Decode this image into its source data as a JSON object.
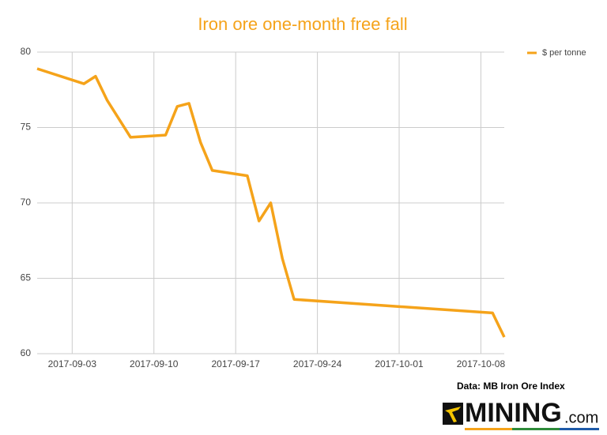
{
  "chart_data": {
    "type": "line",
    "title": "Iron ore one-month free fall",
    "x": [
      "2017-08-31",
      "2017-09-04",
      "2017-09-05",
      "2017-09-06",
      "2017-09-08",
      "2017-09-11",
      "2017-09-12",
      "2017-09-13",
      "2017-09-14",
      "2017-09-15",
      "2017-09-18",
      "2017-09-19",
      "2017-09-20",
      "2017-09-21",
      "2017-09-22",
      "2017-10-09",
      "2017-10-10"
    ],
    "series": [
      {
        "name": "$ per tonne",
        "color": "#f5a31a",
        "values": [
          78.9,
          77.9,
          78.4,
          76.8,
          74.35,
          74.5,
          76.4,
          76.6,
          74.0,
          72.15,
          71.8,
          68.8,
          70.0,
          66.3,
          63.6,
          62.7,
          61.1
        ]
      }
    ],
    "xlim": [
      "2017-08-31",
      "2017-10-10"
    ],
    "xticks": [
      "2017-09-03",
      "2017-09-10",
      "2017-09-17",
      "2017-09-24",
      "2017-10-01",
      "2017-10-08"
    ],
    "ylim": [
      60,
      80
    ],
    "yticks": [
      60,
      65,
      70,
      75,
      80
    ],
    "grid": true,
    "legend": "top-right",
    "source": "Data: MB Iron Ore Index",
    "logo": {
      "main": "MINING",
      "suffix": ".com"
    }
  }
}
